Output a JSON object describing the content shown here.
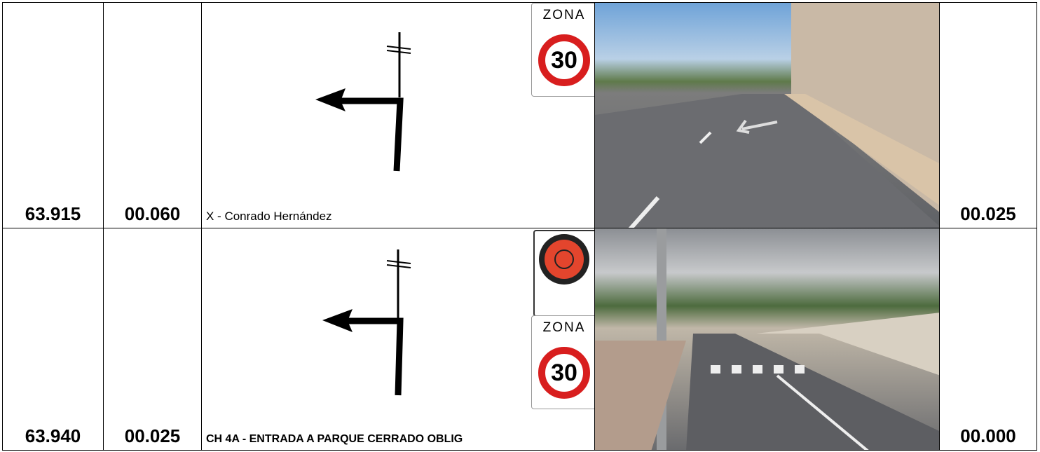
{
  "rows": [
    {
      "total": "63.915",
      "partial": "00.060",
      "description": "X - Conrado Hernández",
      "sign_top": "ZONA",
      "sign_speed": "30",
      "next": "00.025"
    },
    {
      "total": "63.940",
      "partial": "00.025",
      "description": "CH 4A - ENTRADA A PARQUE CERRADO OBLIG",
      "sign_top": "ZONA",
      "sign_speed": "30",
      "next": "00.000"
    }
  ]
}
